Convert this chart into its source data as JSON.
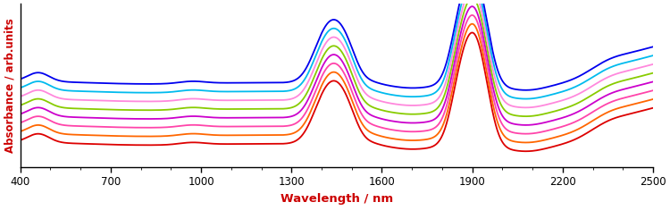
{
  "title": "",
  "xlabel": "Wavelength / nm",
  "ylabel": "Absorbance / arb.units",
  "xlabel_color": "#cc0000",
  "ylabel_color": "#cc0000",
  "xlim": [
    400,
    2500
  ],
  "x_ticks": [
    400,
    700,
    1000,
    1300,
    1600,
    1900,
    2200,
    2500
  ],
  "line_colors": [
    "#dd0000",
    "#ff6600",
    "#ff44aa",
    "#cc00cc",
    "#88cc00",
    "#ff88dd",
    "#00bbee",
    "#0000ee"
  ],
  "offsets": [
    0.0,
    0.06,
    0.12,
    0.18,
    0.24,
    0.3,
    0.36,
    0.42
  ],
  "background_color": "#ffffff",
  "linewidth": 1.3
}
